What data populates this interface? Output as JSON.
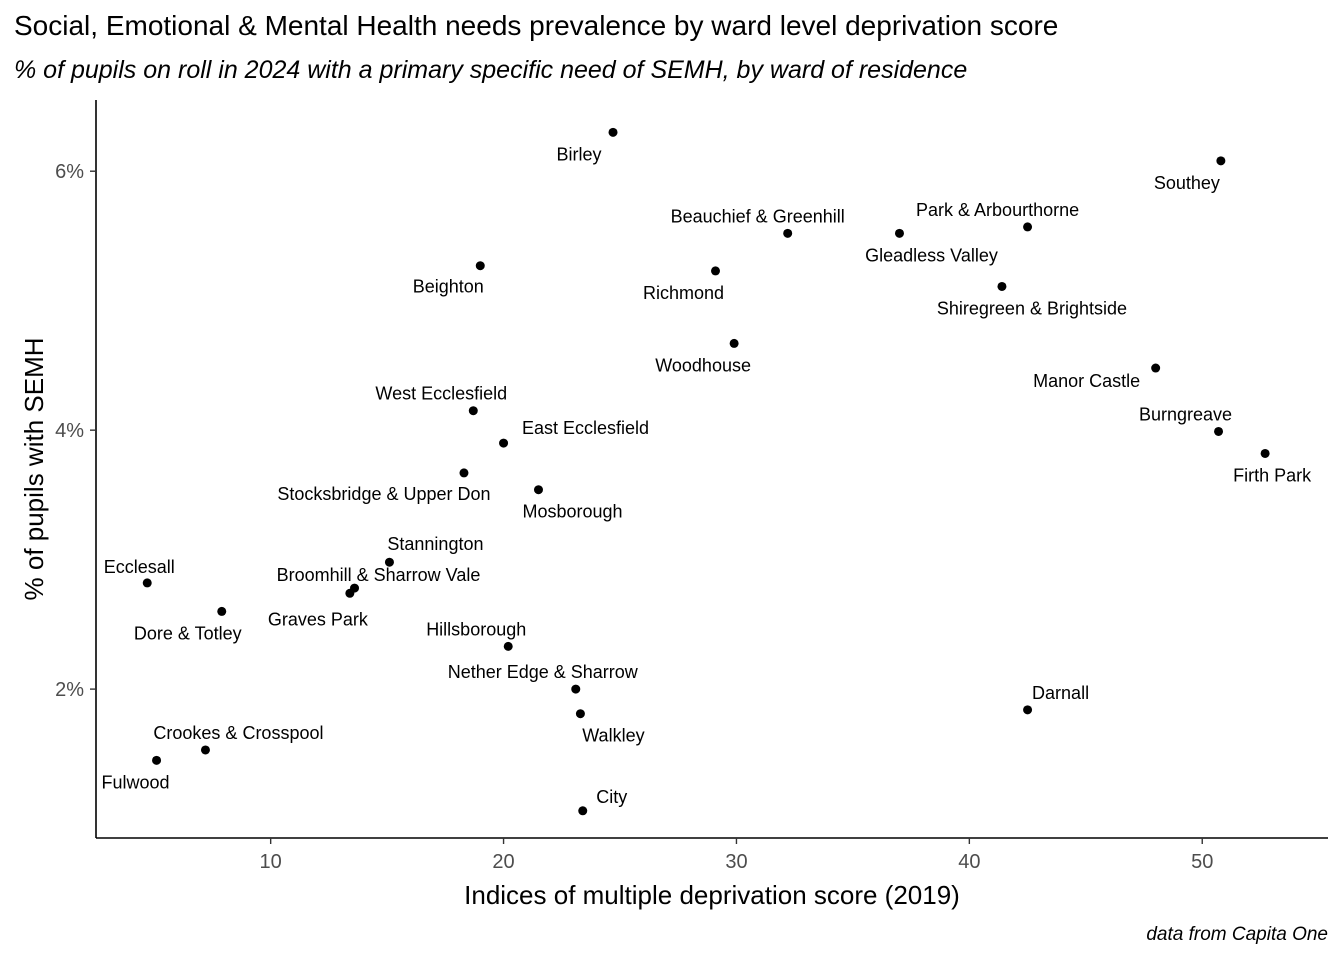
{
  "chart_data": {
    "type": "scatter",
    "title": "Social, Emotional & Mental Health needs prevalence by ward level deprivation score",
    "subtitle": "% of pupils on roll in 2024 with a primary specific need of SEMH, by ward of residence",
    "xlabel": "Indices of multiple deprivation score (2019)",
    "ylabel": "% of pupils with SEMH",
    "caption": "data from Capita One",
    "xlim": [
      2.5,
      55.4
    ],
    "ylim": [
      0.85,
      6.55
    ],
    "x_ticks": [
      10,
      20,
      30,
      40,
      50
    ],
    "y_ticks": [
      2,
      4,
      6
    ],
    "y_tick_format": "%",
    "grid": false,
    "points": [
      {
        "label": "Birley",
        "x": 24.7,
        "y": 6.3
      },
      {
        "label": "Southey",
        "x": 50.8,
        "y": 6.08
      },
      {
        "label": "Beauchief & Greenhill",
        "x": 32.2,
        "y": 5.52
      },
      {
        "label": "Gleadless Valley",
        "x": 37.0,
        "y": 5.52
      },
      {
        "label": "Park & Arbourthorne",
        "x": 42.5,
        "y": 5.57
      },
      {
        "label": "Beighton",
        "x": 19.0,
        "y": 5.27
      },
      {
        "label": "Richmond",
        "x": 29.1,
        "y": 5.23
      },
      {
        "label": "Shiregreen & Brightside",
        "x": 41.4,
        "y": 5.11
      },
      {
        "label": "Woodhouse",
        "x": 29.9,
        "y": 4.67
      },
      {
        "label": "Manor Castle",
        "x": 48.0,
        "y": 4.48
      },
      {
        "label": "West Ecclesfield",
        "x": 18.7,
        "y": 4.15
      },
      {
        "label": "East Ecclesfield",
        "x": 20.0,
        "y": 3.9
      },
      {
        "label": "Burngreave",
        "x": 50.7,
        "y": 3.99
      },
      {
        "label": "Firth Park",
        "x": 52.7,
        "y": 3.82
      },
      {
        "label": "Stocksbridge & Upper Don",
        "x": 18.3,
        "y": 3.67
      },
      {
        "label": "Mosborough",
        "x": 21.5,
        "y": 3.54
      },
      {
        "label": "Stannington",
        "x": 15.1,
        "y": 2.98
      },
      {
        "label": "Ecclesall",
        "x": 4.7,
        "y": 2.82
      },
      {
        "label": "Broomhill & Sharrow Vale",
        "x": 13.6,
        "y": 2.78
      },
      {
        "label": "Graves Park",
        "x": 13.4,
        "y": 2.74
      },
      {
        "label": "Dore & Totley",
        "x": 7.9,
        "y": 2.6
      },
      {
        "label": "Hillsborough",
        "x": 20.2,
        "y": 2.33
      },
      {
        "label": "Nether Edge & Sharrow",
        "x": 23.1,
        "y": 2.0
      },
      {
        "label": "Walkley",
        "x": 23.3,
        "y": 1.81
      },
      {
        "label": "Darnall",
        "x": 42.5,
        "y": 1.84
      },
      {
        "label": "Crookes & Crosspool",
        "x": 7.2,
        "y": 1.53
      },
      {
        "label": "Fulwood",
        "x": 5.1,
        "y": 1.45
      },
      {
        "label": "City",
        "x": 23.4,
        "y": 1.06
      }
    ]
  }
}
